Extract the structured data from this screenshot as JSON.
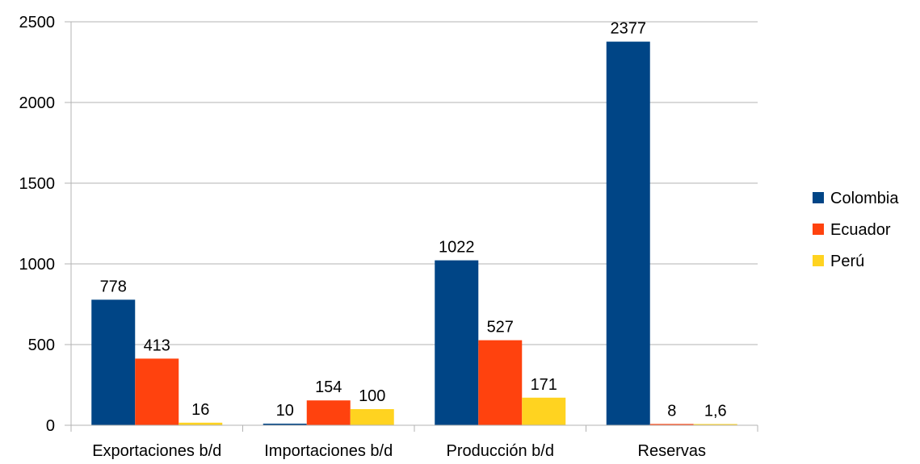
{
  "chart_data": {
    "type": "bar",
    "categories": [
      "Exportaciones b/d",
      "Importaciones b/d",
      "Producción b/d",
      "Reservas"
    ],
    "series": [
      {
        "name": "Colombia",
        "values": [
          778,
          10,
          1022,
          2377
        ],
        "labels": [
          "778",
          "10",
          "1022",
          "2377"
        ],
        "color": "#004586"
      },
      {
        "name": "Ecuador",
        "values": [
          413,
          154,
          527,
          8
        ],
        "labels": [
          "413",
          "154",
          "527",
          "8"
        ],
        "color": "#ff420e"
      },
      {
        "name": "Perú",
        "values": [
          16,
          100,
          171,
          1.6
        ],
        "labels": [
          "16",
          "100",
          "171",
          "1,6"
        ],
        "color": "#ffd320"
      }
    ],
    "y_ticks": [
      "0",
      "500",
      "1000",
      "1500",
      "2000",
      "2500"
    ],
    "ylim": [
      0,
      2500
    ],
    "grid": true,
    "legend": "right"
  }
}
